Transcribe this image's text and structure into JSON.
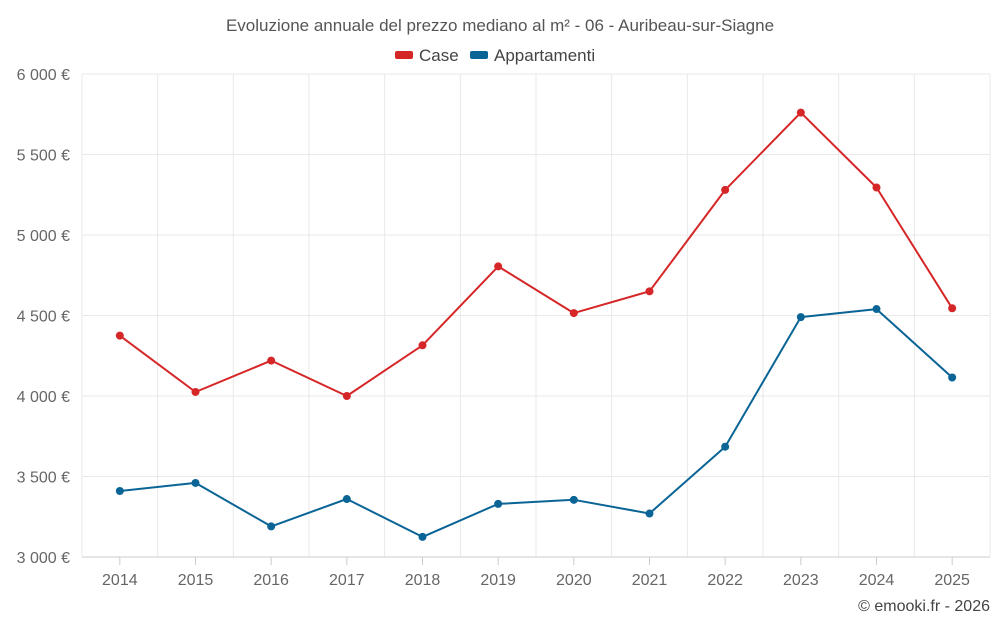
{
  "chart_data": {
    "type": "line",
    "title": "Evoluzione annuale del prezzo mediano al m² - 06 - Auribeau-sur-Siagne",
    "categories": [
      "2014",
      "2015",
      "2016",
      "2017",
      "2018",
      "2019",
      "2020",
      "2021",
      "2022",
      "2023",
      "2024",
      "2025"
    ],
    "series": [
      {
        "name": "Case",
        "color": "#d62728",
        "values": [
          4375,
          4025,
          4220,
          4000,
          4315,
          4805,
          4515,
          4650,
          5280,
          5760,
          5295,
          4545
        ]
      },
      {
        "name": "Appartamenti",
        "color": "#0a6496",
        "values": [
          3410,
          3460,
          3190,
          3360,
          3125,
          3330,
          3355,
          3270,
          3685,
          4490,
          4540,
          4115
        ]
      }
    ],
    "ylim": [
      3000,
      6000
    ],
    "yticks": [
      3000,
      3500,
      4000,
      4500,
      5000,
      5500,
      6000
    ],
    "ytick_labels": [
      "3 000 €",
      "3 500 €",
      "4 000 €",
      "4 500 €",
      "5 000 €",
      "5 500 €",
      "6 000 €"
    ],
    "xlabel": "",
    "ylabel": "",
    "legend_position": "top-center",
    "grid": true
  },
  "credit": "© emooki.fr - 2026"
}
